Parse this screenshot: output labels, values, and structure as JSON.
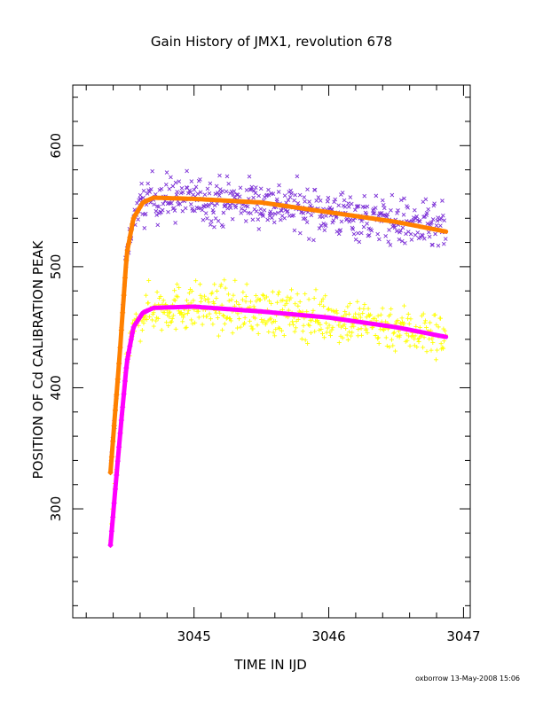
{
  "chart_data": {
    "type": "scatter",
    "title": "Gain History of JMX1, revolution 678",
    "xlabel": "TIME IN IJD",
    "ylabel": "POSITION OF Cd CALIBRATION PEAK",
    "xlim": [
      3044.1,
      3047.05
    ],
    "ylim": [
      210,
      650
    ],
    "x_ticks": [
      3045,
      3046,
      3047
    ],
    "x_tick_labels": [
      "3045",
      "3046",
      "3047"
    ],
    "y_ticks": [
      300,
      400,
      500,
      600
    ],
    "y_tick_labels": [
      "300",
      "400",
      "500",
      "600"
    ],
    "x_minor_step": 0.2,
    "y_minor_step": 20,
    "grid": false,
    "legend": "none",
    "series": [
      {
        "marker": "x",
        "color": "#7b2fd6",
        "trend": [
          [
            3044.38,
            330
          ],
          [
            3044.45,
            430
          ],
          [
            3044.5,
            510
          ],
          [
            3044.55,
            540
          ],
          [
            3044.62,
            553
          ],
          [
            3044.7,
            557
          ],
          [
            3045.0,
            556
          ],
          [
            3045.5,
            553
          ],
          [
            3046.0,
            545
          ],
          [
            3046.5,
            537
          ],
          [
            3046.87,
            530
          ]
        ],
        "scatter_spread": 14,
        "x_range": [
          3044.38,
          3046.87
        ]
      },
      {
        "marker": "+",
        "color": "#ffff00",
        "trend": [
          [
            3044.38,
            275
          ],
          [
            3044.45,
            360
          ],
          [
            3044.5,
            420
          ],
          [
            3044.55,
            450
          ],
          [
            3044.62,
            462
          ],
          [
            3044.7,
            466
          ],
          [
            3045.0,
            467
          ],
          [
            3045.5,
            463
          ],
          [
            3046.0,
            458
          ],
          [
            3046.5,
            450
          ],
          [
            3046.87,
            442
          ]
        ],
        "scatter_spread": 14,
        "x_range": [
          3044.38,
          3046.87
        ]
      },
      {
        "marker": "fit",
        "color": "#ff8000",
        "trend": [
          [
            3044.38,
            330
          ],
          [
            3044.45,
            430
          ],
          [
            3044.5,
            510
          ],
          [
            3044.55,
            540
          ],
          [
            3044.62,
            553
          ],
          [
            3044.7,
            557
          ],
          [
            3045.0,
            556
          ],
          [
            3045.5,
            553
          ],
          [
            3046.0,
            545
          ],
          [
            3046.5,
            537
          ],
          [
            3046.87,
            529
          ]
        ]
      },
      {
        "marker": "fit",
        "color": "#ff00ff",
        "trend": [
          [
            3044.38,
            270
          ],
          [
            3044.45,
            360
          ],
          [
            3044.5,
            420
          ],
          [
            3044.55,
            450
          ],
          [
            3044.62,
            462
          ],
          [
            3044.7,
            466
          ],
          [
            3045.0,
            467
          ],
          [
            3045.5,
            463
          ],
          [
            3046.0,
            458
          ],
          [
            3046.5,
            450
          ],
          [
            3046.87,
            442
          ]
        ]
      }
    ]
  },
  "footer": "oxborrow 13-May-2008 15:06"
}
